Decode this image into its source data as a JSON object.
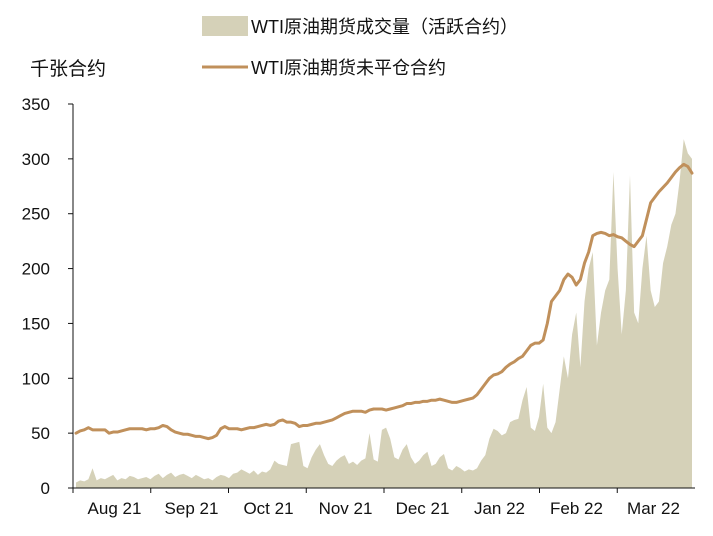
{
  "chart_data": {
    "type": "area",
    "ylabel": "千张合约",
    "ylim": [
      0,
      350
    ],
    "yticks": [
      0,
      50,
      100,
      150,
      200,
      250,
      300,
      350
    ],
    "x_tick_labels": [
      "Aug 21",
      "Sep 21",
      "Oct 21",
      "Nov 21",
      "Dec 21",
      "Jan 22",
      "Feb 22",
      "Mar 22"
    ],
    "legend_position": "top",
    "grid": false,
    "series": [
      {
        "name": "WTI原油期货成交量（活跃合约）",
        "kind": "area",
        "color": "#d5d1b8",
        "values": [
          5,
          7,
          6,
          8,
          18,
          7,
          9,
          8,
          10,
          12,
          7,
          9,
          8,
          11,
          10,
          8,
          9,
          10,
          8,
          11,
          13,
          9,
          12,
          14,
          10,
          12,
          13,
          11,
          9,
          12,
          10,
          8,
          9,
          7,
          10,
          12,
          11,
          9,
          13,
          14,
          17,
          15,
          13,
          16,
          12,
          15,
          14,
          17,
          25,
          22,
          21,
          20,
          40,
          41,
          42,
          20,
          18,
          28,
          35,
          40,
          30,
          22,
          20,
          25,
          28,
          30,
          22,
          24,
          21,
          25,
          27,
          50,
          26,
          24,
          53,
          55,
          45,
          28,
          26,
          35,
          40,
          28,
          22,
          25,
          30,
          33,
          20,
          22,
          28,
          31,
          18,
          16,
          20,
          18,
          15,
          17,
          16,
          18,
          25,
          30,
          45,
          54,
          52,
          48,
          50,
          60,
          62,
          63,
          80,
          92,
          55,
          52,
          65,
          95,
          55,
          50,
          60,
          90,
          120,
          100,
          140,
          160,
          110,
          170,
          200,
          215,
          130,
          160,
          180,
          190,
          288,
          200,
          140,
          180,
          285,
          160,
          150,
          200,
          230,
          180,
          165,
          170,
          205,
          220,
          240,
          250,
          280,
          318,
          305,
          300
        ]
      },
      {
        "name": "WTI原油期货未平仓合约",
        "kind": "line",
        "color": "#c0905b",
        "values": [
          50,
          52,
          53,
          55,
          53,
          53,
          53,
          53,
          50,
          51,
          51,
          52,
          53,
          54,
          54,
          54,
          54,
          53,
          54,
          54,
          55,
          57,
          56,
          53,
          51,
          50,
          49,
          49,
          48,
          47,
          47,
          46,
          45,
          46,
          48,
          54,
          56,
          54,
          54,
          54,
          53,
          54,
          55,
          55,
          56,
          57,
          58,
          57,
          58,
          61,
          62,
          60,
          60,
          59,
          56,
          57,
          57,
          58,
          59,
          59,
          60,
          61,
          62,
          64,
          66,
          68,
          69,
          70,
          70,
          70,
          69,
          71,
          72,
          72,
          72,
          71,
          72,
          73,
          74,
          75,
          77,
          77,
          78,
          78,
          79,
          79,
          80,
          80,
          81,
          80,
          79,
          78,
          78,
          79,
          80,
          81,
          82,
          85,
          90,
          95,
          100,
          103,
          104,
          106,
          110,
          113,
          115,
          118,
          120,
          125,
          130,
          132,
          132,
          135,
          150,
          170,
          175,
          180,
          190,
          195,
          192,
          185,
          190,
          205,
          215,
          230,
          232,
          233,
          232,
          230,
          231,
          229,
          228,
          225,
          222,
          220,
          225,
          230,
          245,
          260,
          265,
          270,
          274,
          278,
          283,
          288,
          292,
          295,
          293,
          287
        ]
      }
    ]
  }
}
